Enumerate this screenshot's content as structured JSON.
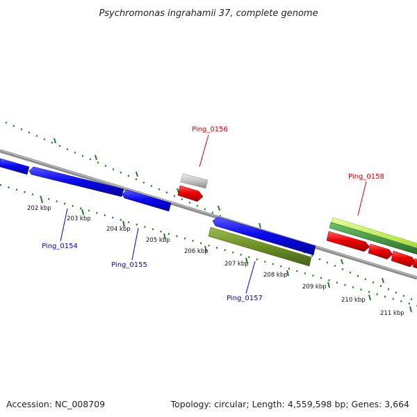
{
  "title": "Psychromonas ingrahamii 37, complete genome",
  "accession": "Accession: NC_008709",
  "summary": "Topology: circular; Length: 4,559,598 bp; Genes: 3,664",
  "colors": {
    "backbone": "#8c8c8c",
    "tick": "#1f7a1f",
    "forward_label": "#cc0000",
    "reverse_label": "#0000cc",
    "cds_blue": "#0a0af0",
    "cds_red": "#ee0000",
    "cds_grey": "#c4c4c4",
    "cds_olive": "#6b8e23",
    "cds_lime": "#b8f040",
    "cds_green": "#3a9a3a"
  },
  "scale_labels": [
    "202 kbp",
    "203 kbp",
    "204 kbp",
    "205 kbp",
    "206 kbp",
    "207 kbp",
    "208 kbp",
    "209 kbp",
    "210 kbp",
    "211 kbp"
  ],
  "gene_labels": {
    "ping_0154": "Ping_0154",
    "ping_0155": "Ping_0155",
    "ping_0156": "Ping_0156",
    "ping_0157": "Ping_0157",
    "ping_0158": "Ping_0158"
  }
}
